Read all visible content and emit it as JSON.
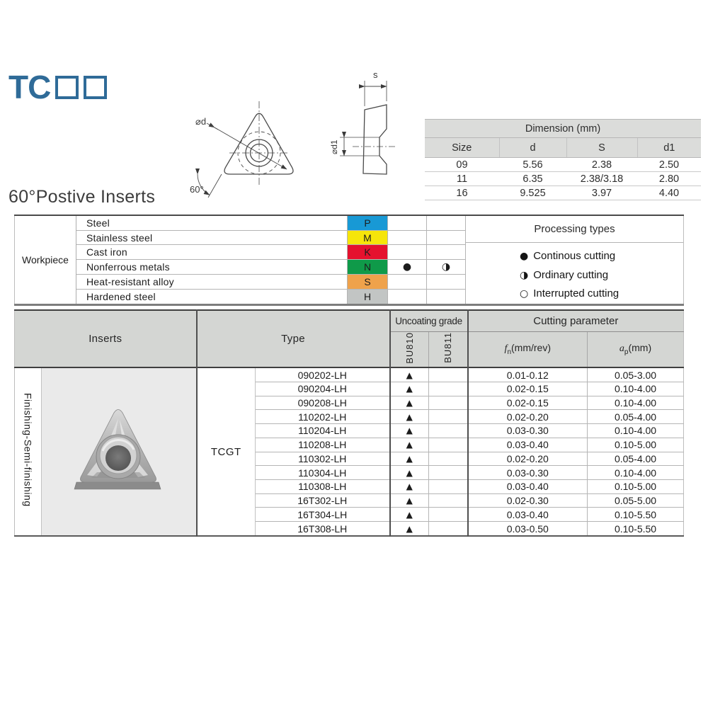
{
  "logo": {
    "prefix": "TC"
  },
  "section_title": "60°Postive Inserts",
  "drawing": {
    "d_label": "⌀d",
    "angle_label": "60°",
    "s_label": "s",
    "d1_label": "⌀d1"
  },
  "dimension_table": {
    "title": "Dimension (mm)",
    "columns": [
      "Size",
      "d",
      "S",
      "d1"
    ],
    "rows": [
      [
        "09",
        "5.56",
        "2.38",
        "2.50"
      ],
      [
        "11",
        "6.35",
        "2.38/3.18",
        "2.80"
      ],
      [
        "16",
        "9.525",
        "3.97",
        "4.40"
      ]
    ]
  },
  "workpiece": {
    "label": "Workpiece",
    "rows": [
      {
        "material": "Steel",
        "code": "P",
        "color": "#1899d5",
        "continuous": "",
        "ordinary": ""
      },
      {
        "material": "Stainless steel",
        "code": "M",
        "color": "#f6e50a",
        "continuous": "",
        "ordinary": ""
      },
      {
        "material": "Cast iron",
        "code": "K",
        "color": "#e5112e",
        "continuous": "",
        "ordinary": ""
      },
      {
        "material": "Nonferrous metals",
        "code": "N",
        "color": "#0f9a49",
        "continuous": "●",
        "ordinary": "◑"
      },
      {
        "material": "Heat-resistant alloy",
        "code": "S",
        "color": "#efa24b",
        "continuous": "",
        "ordinary": ""
      },
      {
        "material": "Hardened steel",
        "code": "H",
        "color": "#c2c5c4",
        "continuous": "",
        "ordinary": ""
      }
    ],
    "processing": {
      "title": "Processing types",
      "legend": [
        {
          "symbol": "●",
          "label": "Continous cutting"
        },
        {
          "symbol": "◑",
          "label": "Ordinary cutting"
        },
        {
          "symbol": "○",
          "label": "Interrupted cutting"
        }
      ]
    }
  },
  "main_table": {
    "headers": {
      "inserts": "Inserts",
      "type": "Type",
      "uncoating": "Uncoating grade",
      "grades": [
        "BU810",
        "BU811"
      ],
      "cutting": "Cutting parameter",
      "fn": {
        "base": "f",
        "sub": "n",
        "rest": "(mm/rev)"
      },
      "ap": {
        "base": "a",
        "sub": "p",
        "rest": "(mm)"
      }
    },
    "group_label": "Finishing-Semi-finishing",
    "type_label": "TCGT",
    "rows": [
      {
        "code": "090202-LH",
        "bu810": "▲",
        "bu811": "",
        "fn": "0.01-0.12",
        "ap": "0.05-3.00"
      },
      {
        "code": "090204-LH",
        "bu810": "▲",
        "bu811": "",
        "fn": "0.02-0.15",
        "ap": "0.10-4.00"
      },
      {
        "code": "090208-LH",
        "bu810": "▲",
        "bu811": "",
        "fn": "0.02-0.15",
        "ap": "0.10-4.00"
      },
      {
        "code": "110202-LH",
        "bu810": "▲",
        "bu811": "",
        "fn": "0.02-0.20",
        "ap": "0.05-4.00"
      },
      {
        "code": "110204-LH",
        "bu810": "▲",
        "bu811": "",
        "fn": "0.03-0.30",
        "ap": "0.10-4.00"
      },
      {
        "code": "110208-LH",
        "bu810": "▲",
        "bu811": "",
        "fn": "0.03-0.40",
        "ap": "0.10-5.00"
      },
      {
        "code": "110302-LH",
        "bu810": "▲",
        "bu811": "",
        "fn": "0.02-0.20",
        "ap": "0.05-4.00"
      },
      {
        "code": "110304-LH",
        "bu810": "▲",
        "bu811": "",
        "fn": "0.03-0.30",
        "ap": "0.10-4.00"
      },
      {
        "code": "110308-LH",
        "bu810": "▲",
        "bu811": "",
        "fn": "0.03-0.40",
        "ap": "0.10-5.00"
      },
      {
        "code": "16T302-LH",
        "bu810": "▲",
        "bu811": "",
        "fn": "0.02-0.30",
        "ap": "0.05-5.00"
      },
      {
        "code": "16T304-LH",
        "bu810": "▲",
        "bu811": "",
        "fn": "0.03-0.40",
        "ap": "0.10-5.50"
      },
      {
        "code": "16T308-LH",
        "bu810": "▲",
        "bu811": "",
        "fn": "0.03-0.50",
        "ap": "0.10-5.50"
      }
    ]
  }
}
